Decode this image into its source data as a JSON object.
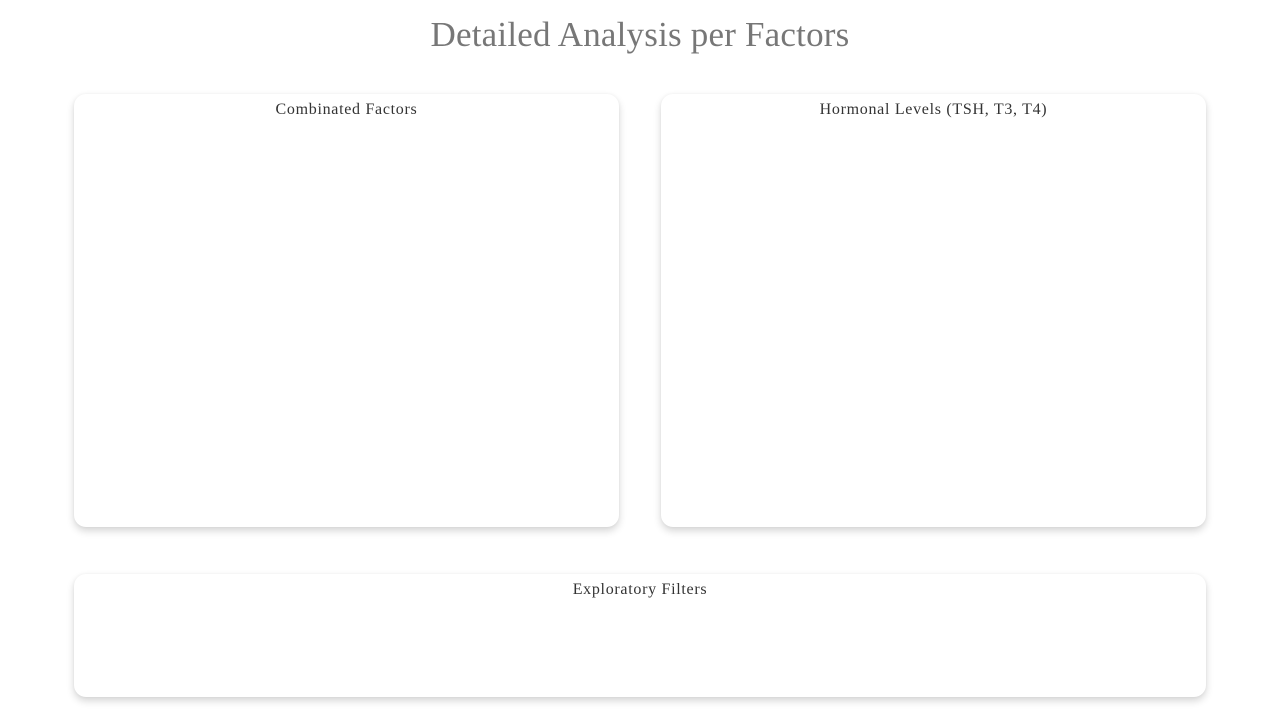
{
  "page": {
    "title": "Detailed Analysis per Factors"
  },
  "cards": {
    "combined_factors": {
      "title": "Combinated Factors"
    },
    "hormonal_levels": {
      "title": "Hormonal Levels (TSH, T3, T4)"
    },
    "exploratory_filters": {
      "title": "Exploratory Filters"
    }
  },
  "colors": {
    "background": "#ffffff",
    "title_text": "#777777",
    "card_title_text": "#333333",
    "card_background": "#ffffff"
  }
}
